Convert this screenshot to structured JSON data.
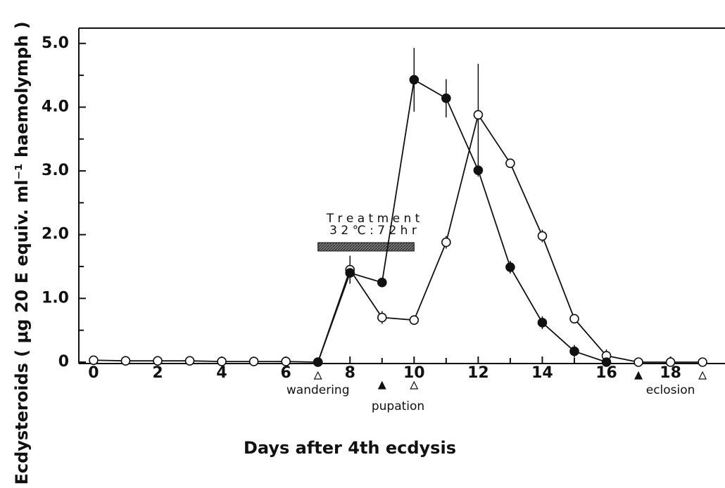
{
  "chart_data": {
    "type": "line",
    "xlabel": "Days after  4th ecdysis",
    "ylabel": "Ecdysteroids ( μg 20 E equiv. ml⁻¹ haemolymph )",
    "xlim": [
      -0.46,
      19.7
    ],
    "ylim": [
      0,
      5.24
    ],
    "xticks": [
      0,
      2,
      4,
      6,
      8,
      10,
      12,
      14,
      16,
      18
    ],
    "xminor": [
      1,
      3,
      5,
      7,
      9,
      11,
      13,
      15,
      17,
      19
    ],
    "yticks": [
      0,
      {
        "value": 1,
        "label": "1.0"
      },
      {
        "value": 2,
        "label": "2.0"
      },
      {
        "value": 3,
        "label": "3.0"
      },
      {
        "value": 4,
        "label": "4.0"
      },
      {
        "value": 5,
        "label": "5.0"
      }
    ],
    "yminor": [
      0.5,
      1.5,
      2.5,
      3.5,
      4.5
    ],
    "series": [
      {
        "marker": "open",
        "color": "#111111",
        "x": [
          0,
          1,
          2,
          3,
          4,
          5,
          6,
          7,
          8,
          9,
          10,
          11,
          12,
          13,
          14,
          15,
          16,
          17,
          18,
          19
        ],
        "values": [
          0.03,
          0.02,
          0.02,
          0.02,
          0.01,
          0.01,
          0.01,
          0,
          1.45,
          0.7,
          0.66,
          1.88,
          3.88,
          3.12,
          1.98,
          0.68,
          0.1,
          0,
          0,
          0
        ],
        "errors": [
          0.05,
          0.04,
          0.04,
          0.03,
          0.03,
          0.03,
          0.03,
          0.03,
          0.22,
          0.1,
          0.06,
          0.1,
          0.8,
          0.05,
          0.1,
          0.07,
          0.1,
          0.03,
          0.03,
          0.03
        ]
      },
      {
        "marker": "filled",
        "color": "#111111",
        "x": [
          7,
          8,
          9,
          10,
          11,
          12,
          13,
          14,
          15,
          16
        ],
        "values": [
          0,
          1.4,
          1.25,
          4.43,
          4.14,
          3.01,
          1.49,
          0.62,
          0.17,
          0
        ],
        "errors": [
          null,
          0.05,
          0.05,
          0.5,
          0.3,
          0.1,
          0.1,
          0.1,
          0.1,
          0.03
        ]
      }
    ],
    "treatment": {
      "lines": [
        "T r e a t m e n t",
        "3 2 ℃ : 7 2   h r"
      ],
      "x": [
        7,
        10
      ]
    },
    "stages": [
      {
        "label": "wandering",
        "markers": [
          {
            "x": 7,
            "filled": false
          }
        ]
      },
      {
        "label": "pupation",
        "markers": [
          {
            "x": 9,
            "filled": true
          },
          {
            "x": 10,
            "filled": false
          }
        ]
      },
      {
        "label": "eclosion",
        "markers": [
          {
            "x": 17,
            "filled": true
          },
          {
            "x": 19,
            "filled": false
          }
        ]
      }
    ]
  }
}
